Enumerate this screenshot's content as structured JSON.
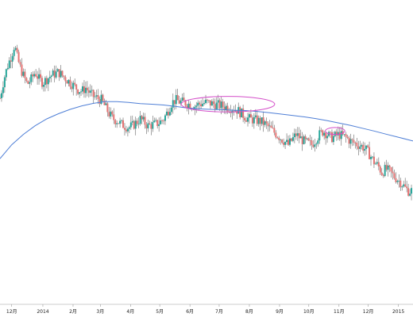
{
  "chart_data": {
    "type": "line",
    "title": "",
    "xlabel": "",
    "ylabel": "",
    "grid": false,
    "legend": "none",
    "x_ticks": [
      {
        "label": "12月",
        "day": 0
      },
      {
        "label": "2014",
        "day": 32
      },
      {
        "label": "2月",
        "day": 63
      },
      {
        "label": "3月",
        "day": 91
      },
      {
        "label": "4月",
        "day": 122
      },
      {
        "label": "5月",
        "day": 152
      },
      {
        "label": "6月",
        "day": 183
      },
      {
        "label": "7月",
        "day": 213
      },
      {
        "label": "8月",
        "day": 244
      },
      {
        "label": "9月",
        "day": 275
      },
      {
        "label": "10月",
        "day": 305
      },
      {
        "label": "11月",
        "day": 336
      },
      {
        "label": "12月",
        "day": 366
      },
      {
        "label": "2015",
        "day": 397
      }
    ],
    "xlim": [
      -12,
      412
    ],
    "ylim": [
      100,
      1200
    ],
    "candle_colors": {
      "up": "#26a69a",
      "down": "#e57373",
      "wick": "#666666"
    },
    "price_path": [
      [
        -12,
        770
      ],
      [
        -8,
        880
      ],
      [
        -4,
        960
      ],
      [
        0,
        1020
      ],
      [
        3,
        1080
      ],
      [
        5,
        1020
      ],
      [
        8,
        960
      ],
      [
        12,
        900
      ],
      [
        16,
        850
      ],
      [
        20,
        880
      ],
      [
        24,
        920
      ],
      [
        28,
        880
      ],
      [
        32,
        860
      ],
      [
        36,
        880
      ],
      [
        40,
        900
      ],
      [
        44,
        910
      ],
      [
        48,
        920
      ],
      [
        52,
        900
      ],
      [
        56,
        880
      ],
      [
        60,
        860
      ],
      [
        64,
        840
      ],
      [
        68,
        820
      ],
      [
        72,
        810
      ],
      [
        76,
        830
      ],
      [
        80,
        800
      ],
      [
        84,
        780
      ],
      [
        88,
        770
      ],
      [
        92,
        760
      ],
      [
        96,
        720
      ],
      [
        100,
        680
      ],
      [
        104,
        650
      ],
      [
        108,
        640
      ],
      [
        112,
        620
      ],
      [
        116,
        610
      ],
      [
        120,
        600
      ],
      [
        124,
        610
      ],
      [
        128,
        630
      ],
      [
        132,
        650
      ],
      [
        136,
        630
      ],
      [
        140,
        610
      ],
      [
        144,
        615
      ],
      [
        148,
        620
      ],
      [
        152,
        630
      ],
      [
        156,
        650
      ],
      [
        160,
        690
      ],
      [
        164,
        740
      ],
      [
        168,
        760
      ],
      [
        172,
        750
      ],
      [
        176,
        745
      ],
      [
        180,
        740
      ],
      [
        184,
        730
      ],
      [
        188,
        725
      ],
      [
        192,
        735
      ],
      [
        196,
        740
      ],
      [
        200,
        745
      ],
      [
        204,
        740
      ],
      [
        208,
        735
      ],
      [
        212,
        730
      ],
      [
        216,
        725
      ],
      [
        220,
        720
      ],
      [
        224,
        715
      ],
      [
        228,
        710
      ],
      [
        232,
        700
      ],
      [
        236,
        680
      ],
      [
        240,
        660
      ],
      [
        244,
        650
      ],
      [
        248,
        645
      ],
      [
        252,
        640
      ],
      [
        256,
        635
      ],
      [
        260,
        620
      ],
      [
        264,
        600
      ],
      [
        268,
        580
      ],
      [
        272,
        560
      ],
      [
        276,
        540
      ],
      [
        280,
        520
      ],
      [
        284,
        500
      ],
      [
        288,
        530
      ],
      [
        292,
        560
      ],
      [
        296,
        540
      ],
      [
        300,
        520
      ],
      [
        304,
        510
      ],
      [
        308,
        500
      ],
      [
        312,
        530
      ],
      [
        316,
        560
      ],
      [
        320,
        580
      ],
      [
        324,
        560
      ],
      [
        328,
        540
      ],
      [
        332,
        550
      ],
      [
        336,
        560
      ],
      [
        340,
        550
      ],
      [
        344,
        540
      ],
      [
        348,
        520
      ],
      [
        352,
        510
      ],
      [
        356,
        500
      ],
      [
        360,
        490
      ],
      [
        364,
        470
      ],
      [
        368,
        440
      ],
      [
        372,
        400
      ],
      [
        376,
        380
      ],
      [
        380,
        340
      ],
      [
        384,
        360
      ],
      [
        388,
        345
      ],
      [
        392,
        320
      ],
      [
        396,
        300
      ],
      [
        400,
        280
      ],
      [
        404,
        250
      ],
      [
        408,
        230
      ],
      [
        412,
        240
      ]
    ],
    "moving_average": [
      [
        -12,
        420
      ],
      [
        0,
        500
      ],
      [
        12,
        560
      ],
      [
        24,
        610
      ],
      [
        36,
        650
      ],
      [
        48,
        680
      ],
      [
        60,
        705
      ],
      [
        72,
        725
      ],
      [
        84,
        740
      ],
      [
        96,
        750
      ],
      [
        108,
        750
      ],
      [
        120,
        745
      ],
      [
        132,
        738
      ],
      [
        144,
        735
      ],
      [
        156,
        730
      ],
      [
        168,
        722
      ],
      [
        180,
        713
      ],
      [
        192,
        708
      ],
      [
        204,
        705
      ],
      [
        216,
        703
      ],
      [
        228,
        700
      ],
      [
        240,
        698
      ],
      [
        252,
        693
      ],
      [
        264,
        686
      ],
      [
        276,
        678
      ],
      [
        288,
        670
      ],
      [
        300,
        662
      ],
      [
        312,
        652
      ],
      [
        324,
        640
      ],
      [
        336,
        626
      ],
      [
        348,
        612
      ],
      [
        360,
        596
      ],
      [
        372,
        580
      ],
      [
        384,
        562
      ],
      [
        396,
        545
      ],
      [
        408,
        528
      ],
      [
        412,
        522
      ]
    ],
    "ma_color": "#4f7fd6",
    "annotation_color": "#d44fc9",
    "annotations": [
      {
        "type": "ellipse",
        "x_range": [
          174,
          270
        ],
        "y_range": [
          690,
          780
        ]
      },
      {
        "type": "ellipse",
        "x_range": [
          322,
          342
        ],
        "y_range": [
          560,
          600
        ]
      }
    ]
  }
}
